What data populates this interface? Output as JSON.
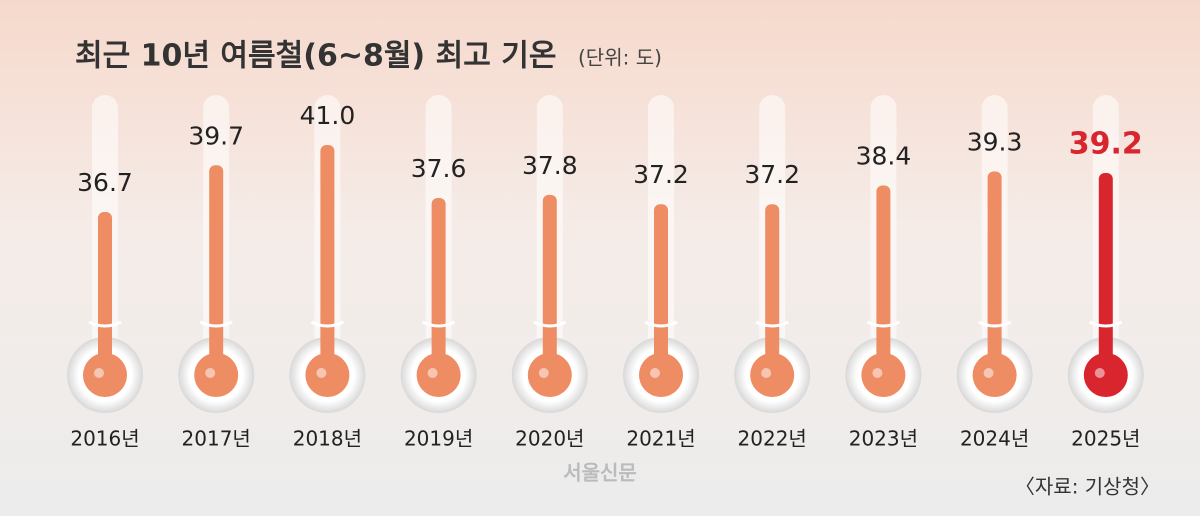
{
  "chart_data": {
    "type": "thermometer",
    "title": "최근 10년 여름철(6~8월) 최고 기온",
    "subtitle": "(단위: 도)",
    "categories": [
      "2016년",
      "2017년",
      "2018년",
      "2019년",
      "2020년",
      "2021년",
      "2022년",
      "2023년",
      "2024년",
      "2025년"
    ],
    "values": [
      36.7,
      39.7,
      41.0,
      37.6,
      37.8,
      37.2,
      37.2,
      38.4,
      39.3,
      39.2
    ],
    "value_labels": [
      "36.7",
      "39.7",
      "41.0",
      "37.6",
      "37.8",
      "37.2",
      "37.2",
      "38.4",
      "39.3",
      "39.2"
    ],
    "color": "#ee8c64",
    "highlight_index": 9,
    "highlight_color": "#d9262e",
    "source": "〈자료: 기상청〉",
    "credit": "서울신문"
  }
}
